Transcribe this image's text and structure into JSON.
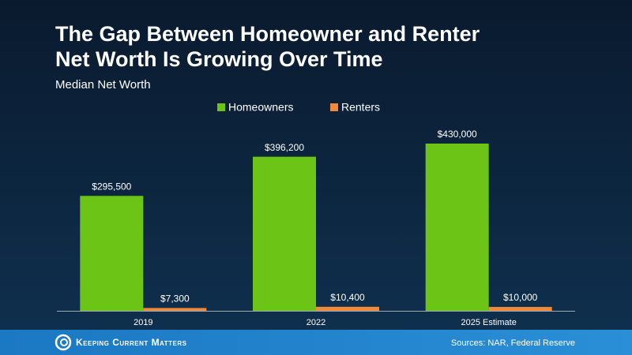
{
  "chart_data": {
    "type": "bar",
    "title": [
      "The Gap Between Homeowner and Renter",
      "Net Worth Is Growing Over Time"
    ],
    "subtitle": "Median Net Worth",
    "categories": [
      "2019",
      "2022",
      "2025 Estimate"
    ],
    "series": [
      {
        "name": "Homeowners",
        "color": "#6cc417",
        "values": [
          295500,
          396200,
          430000
        ],
        "value_labels": [
          "$295,500",
          "$396,200",
          "$430,000"
        ]
      },
      {
        "name": "Renters",
        "color": "#ef8a3c",
        "values": [
          7300,
          10400,
          10000
        ],
        "value_labels": [
          "$7,300",
          "$10,400",
          "$10,000"
        ]
      }
    ],
    "source": "Sources: NAR, Federal Reserve"
  },
  "brand": "Keeping Current Matters"
}
